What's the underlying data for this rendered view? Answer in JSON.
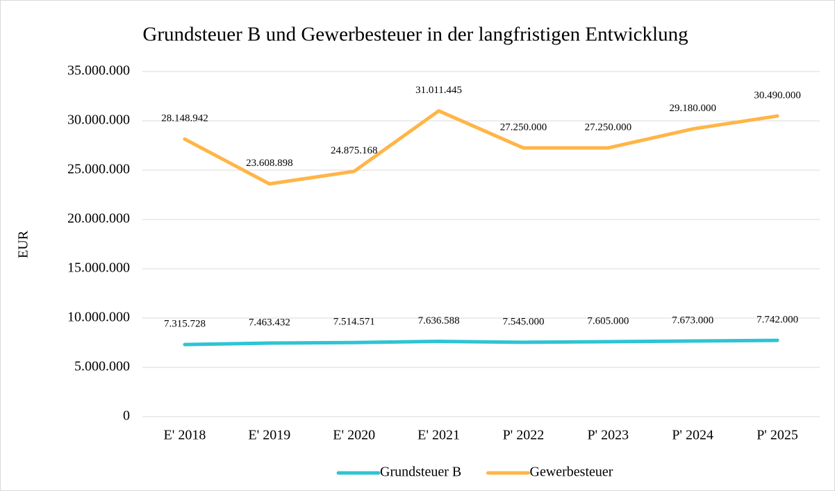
{
  "chart_data": {
    "type": "line",
    "title": "Grundsteuer B und Gewerbesteuer in der langfristigen Entwicklung",
    "y_label": "EUR",
    "categories": [
      "E' 2018",
      "E' 2019",
      "E' 2020",
      "E' 2021",
      "P' 2022",
      "P' 2023",
      "P' 2024",
      "P' 2025"
    ],
    "series": [
      {
        "name": "Grundsteuer B",
        "color": "#2ec4d4",
        "values": [
          7315728,
          7463432,
          7514571,
          7636588,
          7545000,
          7605000,
          7673000,
          7742000
        ],
        "value_labels": [
          "7.315.728",
          "7.463.432",
          "7.514.571",
          "7.636.588",
          "7.545.000",
          "7.605.000",
          "7.673.000",
          "7.742.000"
        ]
      },
      {
        "name": "Gewerbesteuer",
        "color": "#ffb547",
        "values": [
          28148942,
          23608898,
          24875168,
          31011445,
          27250000,
          27250000,
          29180000,
          30490000
        ],
        "value_labels": [
          "28.148.942",
          "23.608.898",
          "24.875.168",
          "31.011.445",
          "27.250.000",
          "27.250.000",
          "29.180.000",
          "30.490.000"
        ]
      }
    ],
    "ylim": [
      0,
      35000000
    ],
    "yticks": [
      0,
      {
        "value": 5000000,
        "label": "5.000.000"
      },
      {
        "value": 10000000,
        "label": "10.000.000"
      },
      {
        "value": 15000000,
        "label": "15.000.000"
      },
      {
        "value": 20000000,
        "label": "20.000.000"
      },
      {
        "value": 25000000,
        "label": "25.000.000"
      },
      {
        "value": 30000000,
        "label": "30.000.000"
      },
      {
        "value": 35000000,
        "label": "35.000.000"
      }
    ],
    "grid": true,
    "legend": "bottom"
  }
}
